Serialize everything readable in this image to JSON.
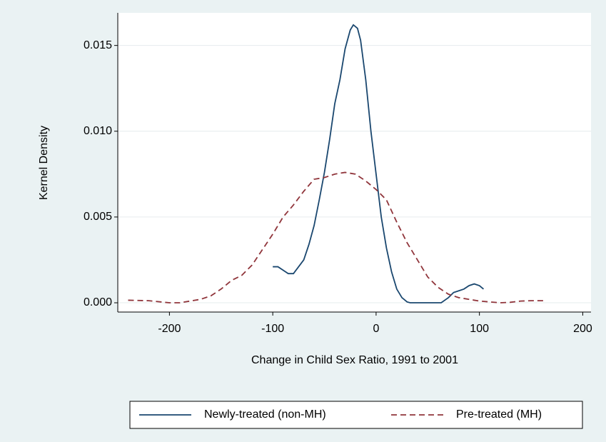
{
  "chart_data": {
    "type": "line",
    "xlabel": "Change in Child Sex Ratio, 1991 to 2001",
    "ylabel": "Kernel Density",
    "xlim": [
      -250,
      208
    ],
    "ylim": [
      -0.00054,
      0.0169
    ],
    "xticks": [
      -200,
      -100,
      0,
      100,
      200
    ],
    "yticks": [
      {
        "value": 0,
        "label": "0.000"
      },
      {
        "value": 0.005,
        "label": "0.005"
      },
      {
        "value": 0.01,
        "label": "0.010"
      },
      {
        "value": 0.015,
        "label": "0.015"
      }
    ],
    "grid": true,
    "legend": "bottom",
    "series": [
      {
        "name": "Newly-treated (non-MH)",
        "color": "#1a476f",
        "dash": "solid",
        "x": [
          -100,
          -95,
          -90,
          -85,
          -80,
          -75,
          -70,
          -65,
          -60,
          -55,
          -50,
          -45,
          -40,
          -35,
          -30,
          -25,
          -22,
          -18,
          -15,
          -10,
          -5,
          0,
          5,
          10,
          15,
          20,
          25,
          30,
          33,
          40,
          50,
          60,
          63,
          70,
          75,
          80,
          85,
          90,
          95,
          100,
          104
        ],
        "values": [
          0.0021,
          0.0021,
          0.0019,
          0.0017,
          0.0017,
          0.0021,
          0.0025,
          0.0034,
          0.0045,
          0.006,
          0.0076,
          0.0095,
          0.0116,
          0.013,
          0.0148,
          0.0159,
          0.0162,
          0.016,
          0.0153,
          0.013,
          0.01,
          0.0075,
          0.005,
          0.0032,
          0.0018,
          0.0008,
          0.0003,
          5e-05,
          0,
          0,
          0,
          0,
          0,
          0.0003,
          0.0006,
          0.0007,
          0.0008,
          0.001,
          0.0011,
          0.001,
          0.0008
        ]
      },
      {
        "name": "Pre-treated (MH)",
        "color": "#90353b",
        "dash": "dashed",
        "x": [
          -240,
          -220,
          -200,
          -190,
          -180,
          -170,
          -160,
          -150,
          -140,
          -130,
          -120,
          -110,
          -100,
          -90,
          -80,
          -70,
          -60,
          -50,
          -40,
          -30,
          -20,
          -10,
          0,
          10,
          20,
          30,
          40,
          50,
          60,
          70,
          80,
          90,
          100,
          120,
          130,
          140,
          150,
          165
        ],
        "values": [
          0.00015,
          0.00012,
          0,
          0,
          0.0001,
          0.0002,
          0.0004,
          0.0008,
          0.0013,
          0.0016,
          0.0022,
          0.0031,
          0.004,
          0.005,
          0.0057,
          0.0065,
          0.0072,
          0.0073,
          0.0075,
          0.0076,
          0.0075,
          0.0071,
          0.0066,
          0.006,
          0.0047,
          0.0035,
          0.0025,
          0.0015,
          0.0009,
          0.0005,
          0.0003,
          0.0002,
          0.0001,
          0,
          3e-05,
          0.0001,
          0.00012,
          0.00012
        ]
      }
    ]
  }
}
